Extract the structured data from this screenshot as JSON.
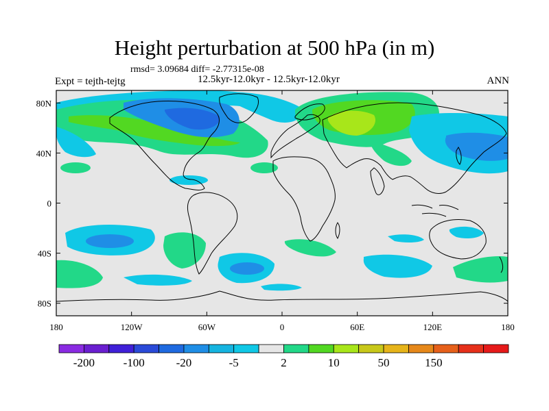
{
  "header": {
    "title": "Height perturbation at 500 hPa (in m)",
    "stats": "rmsd= 3.09684 diff= -2.77315e-08",
    "subtitle": "12.5kyr-12.0kyr - 12.5kyr-12.0kyr",
    "left_label": "Expt = tejth-tejtg",
    "right_label": "ANN"
  },
  "map": {
    "projection": "cylindrical-equidistant",
    "lon_range": [
      -180,
      180
    ],
    "lat_range": [
      -90,
      90
    ],
    "background_color": "#e6e6e6",
    "x_ticks": [
      {
        "lon": -180,
        "label": "180"
      },
      {
        "lon": -120,
        "label": "120W"
      },
      {
        "lon": -60,
        "label": "60W"
      },
      {
        "lon": 0,
        "label": "0"
      },
      {
        "lon": 60,
        "label": "60E"
      },
      {
        "lon": 120,
        "label": "120E"
      },
      {
        "lon": 180,
        "label": "180"
      }
    ],
    "y_ticks": [
      {
        "lat": 80,
        "label": "80N"
      },
      {
        "lat": 40,
        "label": "40N"
      },
      {
        "lat": 0,
        "label": "0"
      },
      {
        "lat": -40,
        "label": "40S"
      },
      {
        "lat": -80,
        "label": "80S"
      }
    ]
  },
  "colorbar": {
    "colors": [
      "#8a2be2",
      "#6a1fd0",
      "#4020d8",
      "#2a4ad8",
      "#1f6ae0",
      "#1f8ee6",
      "#15b4e0",
      "#10c8e6",
      "#e6e6e6",
      "#22d888",
      "#52d822",
      "#a8e61a",
      "#c8c81a",
      "#e6b41a",
      "#e6881a",
      "#e6601a",
      "#e6301a",
      "#e61a1a"
    ],
    "labels": [
      {
        "boundary": 1,
        "text": "-200"
      },
      {
        "boundary": 3,
        "text": "-100"
      },
      {
        "boundary": 5,
        "text": "-20"
      },
      {
        "boundary": 7,
        "text": "-5"
      },
      {
        "boundary": 9,
        "text": "2"
      },
      {
        "boundary": 11,
        "text": "10"
      },
      {
        "boundary": 13,
        "text": "50"
      },
      {
        "boundary": 15,
        "text": "150"
      }
    ]
  }
}
